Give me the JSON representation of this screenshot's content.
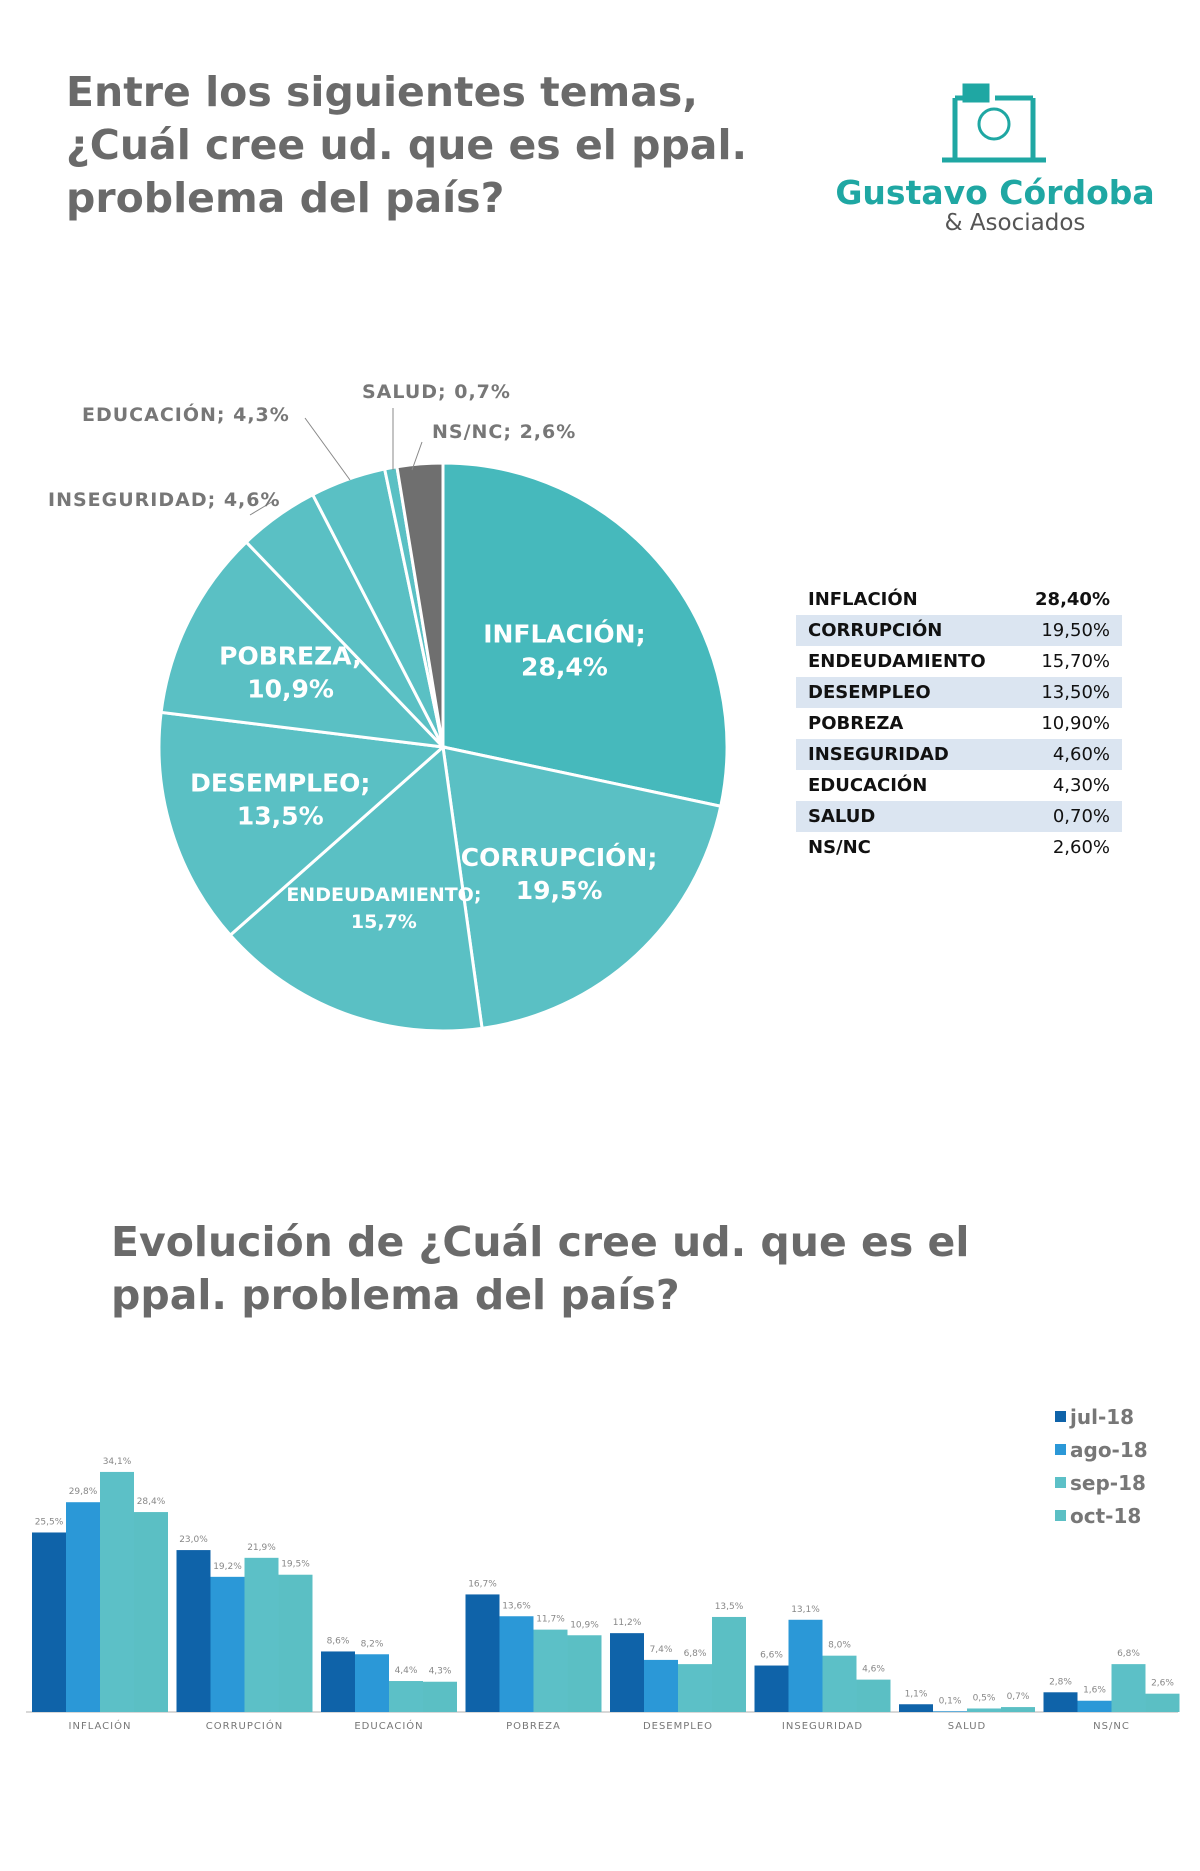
{
  "header": {
    "title": "Entre los siguientes temas, ¿Cuál cree ud. que es el ppal. problema del país?"
  },
  "logo": {
    "name": "Gustavo Córdoba",
    "sub": "& Asociados",
    "color": "#1fa7a3"
  },
  "chart_data": [
    {
      "type": "pie",
      "title": "",
      "slices": [
        {
          "label": "INFLACIÓN",
          "value": 28.4,
          "display": "28,4%",
          "color": "#46b9bc"
        },
        {
          "label": "CORRUPCIÓN",
          "value": 19.5,
          "display": "19,5%",
          "color": "#5ac0c4"
        },
        {
          "label": "ENDEUDAMIENTO",
          "value": 15.7,
          "display": "15,7%",
          "color": "#5ac0c4"
        },
        {
          "label": "DESEMPLEO",
          "value": 13.5,
          "display": "13,5%",
          "color": "#5ac0c4"
        },
        {
          "label": "POBREZA",
          "value": 10.9,
          "display": "10,9%",
          "color": "#5ac0c4"
        },
        {
          "label": "INSEGURIDAD",
          "value": 4.6,
          "display": "4,6%",
          "color": "#5ac0c4"
        },
        {
          "label": "EDUCACIÓN",
          "value": 4.3,
          "display": "4,3%",
          "color": "#5ac0c4"
        },
        {
          "label": "SALUD",
          "value": 0.7,
          "display": "0,7%",
          "color": "#5ac0c4"
        },
        {
          "label": "NS/NC",
          "value": 2.6,
          "display": "2,6%",
          "color": "#6f6f6f"
        }
      ]
    },
    {
      "type": "table",
      "rows": [
        [
          "INFLACIÓN",
          "28,40%"
        ],
        [
          "CORRUPCIÓN",
          "19,50%"
        ],
        [
          "ENDEUDAMIENTO",
          "15,70%"
        ],
        [
          "DESEMPLEO",
          "13,50%"
        ],
        [
          "POBREZA",
          "10,90%"
        ],
        [
          "INSEGURIDAD",
          "4,60%"
        ],
        [
          "EDUCACIÓN",
          "4,30%"
        ],
        [
          "SALUD",
          "0,70%"
        ],
        [
          "NS/NC",
          "2,60%"
        ]
      ]
    },
    {
      "type": "bar",
      "title": "Evolución de  ¿Cuál cree ud. que es el ppal. problema del país?",
      "categories": [
        "INFLACIÓN",
        "CORRUPCIÓN",
        "EDUCACIÓN",
        "POBREZA",
        "DESEMPLEO",
        "INSEGURIDAD",
        "SALUD",
        "NS/NC"
      ],
      "legend": "top-right",
      "ylim": [
        0,
        36
      ],
      "grid": false,
      "series": [
        {
          "name": "jul-18",
          "color": "#0f63a9",
          "values": [
            25.5,
            23.0,
            8.6,
            16.7,
            11.2,
            6.6,
            1.1,
            2.8
          ]
        },
        {
          "name": "ago-18",
          "color": "#2b98d7",
          "values": [
            29.8,
            19.2,
            8.2,
            13.6,
            7.4,
            13.1,
            0.1,
            1.6
          ]
        },
        {
          "name": "sep-18",
          "color": "#5cc0c7",
          "values": [
            34.1,
            21.9,
            4.4,
            11.7,
            6.8,
            8.0,
            0.5,
            6.8
          ]
        },
        {
          "name": "oct-18",
          "color": "#5bbfc4",
          "values": [
            28.4,
            19.5,
            4.3,
            10.9,
            13.5,
            4.6,
            0.7,
            2.6
          ]
        }
      ]
    }
  ]
}
